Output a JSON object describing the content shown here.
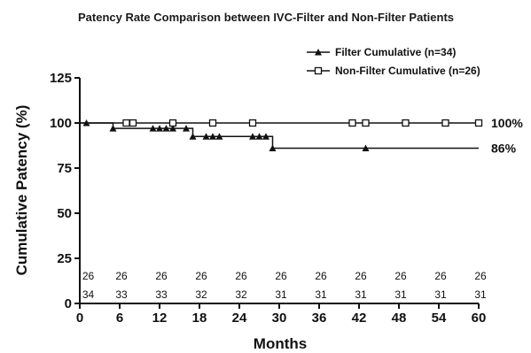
{
  "chart_data": {
    "type": "line",
    "title": "Patency Rate Comparison between IVC-Filter and Non-Filter Patients",
    "xlabel": "Months",
    "ylabel": "Cumulative Patency (%)",
    "xlim": [
      0,
      60
    ],
    "ylim": [
      0,
      125
    ],
    "xticks": [
      "0",
      "6",
      "12",
      "18",
      "24",
      "30",
      "36",
      "42",
      "48",
      "54",
      "60"
    ],
    "yticks": [
      "0",
      "25",
      "50",
      "75",
      "100",
      "125"
    ],
    "grid": false,
    "legend_position": "top-right",
    "series": [
      {
        "name": "Filter Cumulative (n=34)",
        "marker": "triangle",
        "step_x": [
          0,
          5,
          11,
          17,
          29,
          60
        ],
        "step_y": [
          100,
          97,
          97,
          92.5,
          86,
          86
        ],
        "censor_x": [
          1,
          5,
          11,
          12,
          13,
          14,
          16,
          17,
          19,
          20,
          21,
          26,
          27,
          28,
          29,
          43
        ],
        "censor_y": [
          100,
          97,
          97,
          97,
          97,
          97,
          97,
          92.5,
          92.5,
          92.5,
          92.5,
          92.5,
          92.5,
          92.5,
          86,
          86
        ],
        "end_label": "86%"
      },
      {
        "name": "Non-Filter Cumulative (n=26)",
        "marker": "square",
        "step_x": [
          0,
          60
        ],
        "step_y": [
          100,
          100
        ],
        "censor_x": [
          7,
          8,
          14,
          20,
          26,
          41,
          43,
          49,
          55,
          60
        ],
        "censor_y": [
          100,
          100,
          100,
          100,
          100,
          100,
          100,
          100,
          100,
          100
        ],
        "end_label": "100%"
      }
    ],
    "risk_table": {
      "x": [
        1,
        6,
        12,
        18,
        24,
        30,
        36,
        42,
        48,
        54,
        60
      ],
      "rows": [
        [
          "26",
          "26",
          "26",
          "26",
          "26",
          "26",
          "26",
          "26",
          "26",
          "26",
          "26"
        ],
        [
          "34",
          "33",
          "33",
          "32",
          "32",
          "31",
          "31",
          "31",
          "31",
          "31",
          "31"
        ]
      ]
    }
  }
}
